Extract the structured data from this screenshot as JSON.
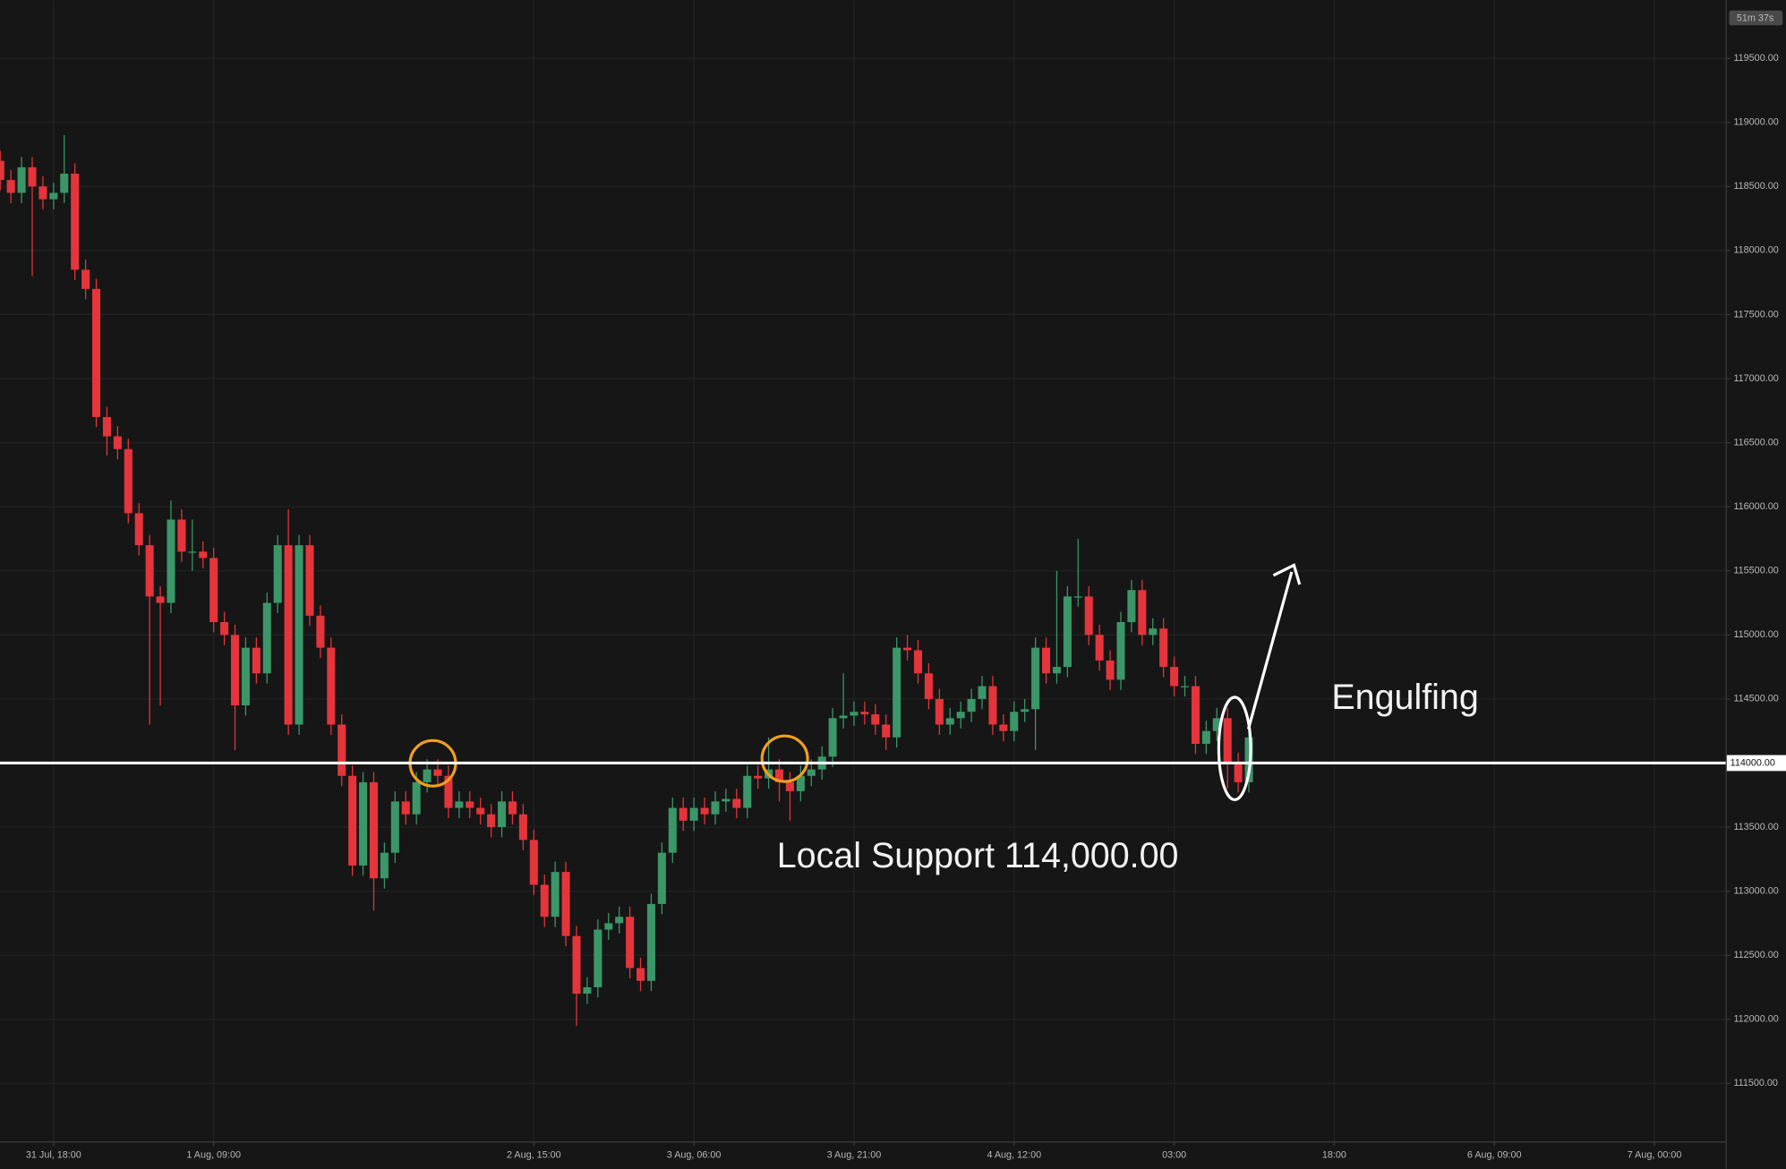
{
  "chart_data": {
    "type": "candlestick",
    "tag": "51m 37s",
    "annotations": {
      "support_text": "Local Support 114,000.00",
      "pattern_text": "Engulfing"
    },
    "support": {
      "value": 114000,
      "label": "114000.00"
    },
    "up_color": "#3b9668",
    "down_color": "#e5343b",
    "grid": true,
    "xlim": [
      -0.02,
      161.67
    ],
    "ylim": [
      111047,
      119953
    ],
    "xticks": [
      {
        "value": 5,
        "label": "31 Jul, 18:00"
      },
      {
        "value": 20,
        "label": "1 Aug, 09:00"
      },
      {
        "value": 50,
        "label": "2 Aug, 15:00"
      },
      {
        "value": 65,
        "label": "3 Aug, 06:00"
      },
      {
        "value": 80,
        "label": "3 Aug, 21:00"
      },
      {
        "value": 95,
        "label": "4 Aug, 12:00"
      },
      {
        "value": 110,
        "label": "03:00"
      },
      {
        "value": 125,
        "label": "18:00"
      },
      {
        "value": 140,
        "label": "6 Aug, 09:00"
      },
      {
        "value": 155,
        "label": "7 Aug, 00:00"
      }
    ],
    "yticks": [
      {
        "value": 111500,
        "label": "111500.00"
      },
      {
        "value": 112000,
        "label": "112000.00"
      },
      {
        "value": 112500,
        "label": "112500.00"
      },
      {
        "value": 113000,
        "label": "113000.00"
      },
      {
        "value": 113500,
        "label": "113500.00"
      },
      {
        "value": 114500,
        "label": "114500.00"
      },
      {
        "value": 115000,
        "label": "115000.00"
      },
      {
        "value": 115500,
        "label": "115500.00"
      },
      {
        "value": 116000,
        "label": "116000.00"
      },
      {
        "value": 116500,
        "label": "116500.00"
      },
      {
        "value": 117000,
        "label": "117000.00"
      },
      {
        "value": 117500,
        "label": "117500.00"
      },
      {
        "value": 118000,
        "label": "118000.00"
      },
      {
        "value": 118500,
        "label": "118500.00"
      },
      {
        "value": 119000,
        "label": "119000.00"
      },
      {
        "value": 119500,
        "label": "119500.00"
      }
    ],
    "candles": [
      [
        118700,
        118780,
        118470,
        118550
      ],
      [
        118550,
        118630,
        118370,
        118450
      ],
      [
        118450,
        118730,
        118370,
        118650
      ],
      [
        118650,
        118730,
        117800,
        118500
      ],
      [
        118500,
        118580,
        118320,
        118400
      ],
      [
        118400,
        118530,
        118320,
        118450
      ],
      [
        118450,
        118900,
        118370,
        118600
      ],
      [
        118600,
        118680,
        117770,
        117850
      ],
      [
        117850,
        117930,
        117620,
        117700
      ],
      [
        117700,
        117780,
        116620,
        116700
      ],
      [
        116700,
        116780,
        116400,
        116550
      ],
      [
        116550,
        116630,
        116370,
        116450
      ],
      [
        116450,
        116530,
        115870,
        115950
      ],
      [
        115950,
        116030,
        115620,
        115700
      ],
      [
        115700,
        115780,
        114300,
        115300
      ],
      [
        115300,
        115380,
        114450,
        115250
      ],
      [
        115250,
        116050,
        115170,
        115900
      ],
      [
        115900,
        115980,
        115570,
        115650
      ],
      [
        115650,
        115900,
        115500,
        115650
      ],
      [
        115650,
        115730,
        115520,
        115600
      ],
      [
        115600,
        115680,
        115020,
        115100
      ],
      [
        115100,
        115180,
        114920,
        115000
      ],
      [
        115000,
        115080,
        114100,
        114450
      ],
      [
        114450,
        114980,
        114370,
        114900
      ],
      [
        114900,
        114980,
        114620,
        114700
      ],
      [
        114700,
        115330,
        114620,
        115250
      ],
      [
        115250,
        115780,
        115170,
        115700
      ],
      [
        115700,
        115980,
        114220,
        114300
      ],
      [
        114300,
        115780,
        114220,
        115700
      ],
      [
        115700,
        115780,
        115070,
        115150
      ],
      [
        115150,
        115230,
        114820,
        114900
      ],
      [
        114900,
        114980,
        114220,
        114300
      ],
      [
        114300,
        114380,
        113820,
        113900
      ],
      [
        113900,
        113980,
        113120,
        113200
      ],
      [
        113200,
        113930,
        113120,
        113850
      ],
      [
        113850,
        113930,
        112850,
        113100
      ],
      [
        113100,
        113380,
        113020,
        113300
      ],
      [
        113300,
        113780,
        113220,
        113700
      ],
      [
        113700,
        113780,
        113520,
        113600
      ],
      [
        113600,
        113930,
        113520,
        113850
      ],
      [
        113850,
        114030,
        113770,
        113950
      ],
      [
        113950,
        114030,
        113820,
        113900
      ],
      [
        113900,
        113980,
        113570,
        113650
      ],
      [
        113650,
        113780,
        113570,
        113700
      ],
      [
        113700,
        113780,
        113570,
        113650
      ],
      [
        113650,
        113730,
        113520,
        113600
      ],
      [
        113600,
        113680,
        113420,
        113500
      ],
      [
        113500,
        113780,
        113420,
        113700
      ],
      [
        113700,
        113780,
        113520,
        113600
      ],
      [
        113600,
        113680,
        113320,
        113400
      ],
      [
        113400,
        113480,
        112970,
        113050
      ],
      [
        113050,
        113130,
        112720,
        112800
      ],
      [
        112800,
        113230,
        112720,
        113150
      ],
      [
        113150,
        113230,
        112570,
        112650
      ],
      [
        112650,
        112730,
        111950,
        112200
      ],
      [
        112200,
        112330,
        112120,
        112250
      ],
      [
        112250,
        112780,
        112170,
        112700
      ],
      [
        112700,
        112830,
        112620,
        112750
      ],
      [
        112750,
        112880,
        112670,
        112800
      ],
      [
        112800,
        112880,
        112320,
        112400
      ],
      [
        112400,
        112480,
        112220,
        112300
      ],
      [
        112300,
        112980,
        112220,
        112900
      ],
      [
        112900,
        113380,
        112820,
        113300
      ],
      [
        113300,
        113730,
        113220,
        113650
      ],
      [
        113650,
        113730,
        113470,
        113550
      ],
      [
        113550,
        113730,
        113470,
        113650
      ],
      [
        113650,
        113730,
        113520,
        113600
      ],
      [
        113600,
        113780,
        113520,
        113700
      ],
      [
        113700,
        113800,
        113620,
        113720
      ],
      [
        113720,
        113800,
        113570,
        113650
      ],
      [
        113650,
        113980,
        113570,
        113900
      ],
      [
        113900,
        113980,
        113800,
        113880
      ],
      [
        113880,
        114200,
        113800,
        113950
      ],
      [
        113950,
        114030,
        113700,
        113850
      ],
      [
        113850,
        113930,
        113550,
        113780
      ],
      [
        113780,
        113980,
        113700,
        113900
      ],
      [
        113900,
        114030,
        113820,
        113950
      ],
      [
        113950,
        114130,
        113870,
        114050
      ],
      [
        114050,
        114430,
        113970,
        114350
      ],
      [
        114350,
        114700,
        114270,
        114370
      ],
      [
        114370,
        114480,
        114290,
        114400
      ],
      [
        114400,
        114480,
        114300,
        114380
      ],
      [
        114380,
        114460,
        114220,
        114300
      ],
      [
        114300,
        114380,
        114100,
        114200
      ],
      [
        114200,
        114980,
        114120,
        114900
      ],
      [
        114900,
        115000,
        114800,
        114880
      ],
      [
        114880,
        114960,
        114620,
        114700
      ],
      [
        114700,
        114780,
        114420,
        114500
      ],
      [
        114500,
        114580,
        114220,
        114300
      ],
      [
        114300,
        114430,
        114220,
        114350
      ],
      [
        114350,
        114480,
        114270,
        114400
      ],
      [
        114400,
        114580,
        114320,
        114500
      ],
      [
        114500,
        114680,
        114420,
        114600
      ],
      [
        114600,
        114680,
        114220,
        114300
      ],
      [
        114300,
        114380,
        114170,
        114250
      ],
      [
        114250,
        114480,
        114170,
        114400
      ],
      [
        114400,
        114500,
        114320,
        114420
      ],
      [
        114420,
        114980,
        114100,
        114900
      ],
      [
        114900,
        114980,
        114620,
        114700
      ],
      [
        114700,
        115500,
        114620,
        114750
      ],
      [
        114750,
        115380,
        114670,
        115300
      ],
      [
        115300,
        115750,
        115220,
        115300
      ],
      [
        115300,
        115380,
        114920,
        115000
      ],
      [
        115000,
        115080,
        114720,
        114800
      ],
      [
        114800,
        114880,
        114570,
        114650
      ],
      [
        114650,
        115180,
        114570,
        115100
      ],
      [
        115100,
        115430,
        115020,
        115350
      ],
      [
        115350,
        115430,
        114920,
        115000
      ],
      [
        115000,
        115130,
        114920,
        115050
      ],
      [
        115050,
        115130,
        114670,
        114750
      ],
      [
        114750,
        114830,
        114520,
        114600
      ],
      [
        114600,
        114680,
        114520,
        114600
      ],
      [
        114600,
        114680,
        114070,
        114150
      ],
      [
        114150,
        114330,
        114070,
        114250
      ],
      [
        114250,
        114430,
        114170,
        114350
      ],
      [
        114350,
        114430,
        113800,
        114000
      ],
      [
        114000,
        114080,
        113770,
        113850
      ],
      [
        113850,
        114280,
        113770,
        114200
      ]
    ]
  }
}
